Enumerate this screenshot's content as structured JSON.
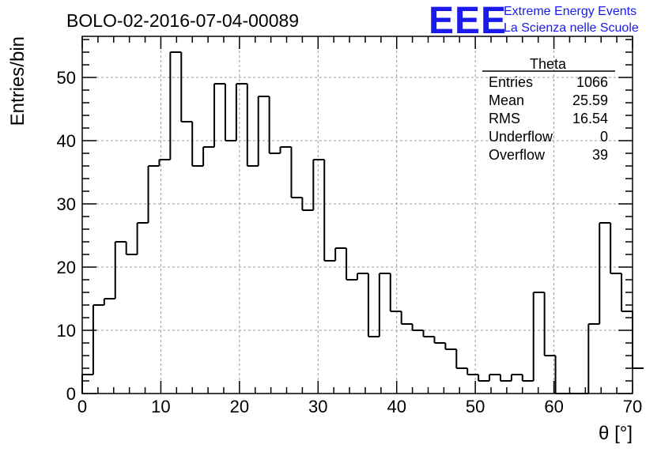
{
  "chart_data": {
    "type": "bar",
    "title": "BOLO-02-2016-07-04-00089",
    "xlabel": "θ [°]",
    "ylabel": "Entries/bin",
    "xlim": [
      0,
      70
    ],
    "ylim": [
      0,
      56.5
    ],
    "x_ticks": [
      "0",
      "10",
      "20",
      "30",
      "40",
      "50",
      "60",
      "70"
    ],
    "y_ticks": [
      "0",
      "10",
      "20",
      "30",
      "40",
      "50"
    ],
    "grid": true,
    "bin_start": 0,
    "bin_width": 1.4,
    "values": [
      3,
      14,
      15,
      24,
      22,
      27,
      36,
      37,
      54,
      43,
      36,
      39,
      49,
      40,
      49,
      36,
      47,
      38,
      39,
      31,
      29,
      37,
      21,
      23,
      18,
      19,
      9,
      19,
      13,
      11,
      10,
      9,
      8,
      7,
      4,
      3,
      2,
      3,
      2,
      3,
      2,
      16,
      6,
      0,
      0,
      0,
      11,
      27,
      19,
      13,
      4
    ],
    "series": [
      {
        "name": "Theta"
      }
    ],
    "stats_box": {
      "title": "Theta",
      "rows": [
        {
          "label": "Entries",
          "value": "1066"
        },
        {
          "label": "Mean",
          "value": "25.59"
        },
        {
          "label": "RMS",
          "value": "16.54"
        },
        {
          "label": "Underflow",
          "value": "0"
        },
        {
          "label": "Overflow",
          "value": "39"
        }
      ],
      "placement": "top-right"
    }
  },
  "logo": {
    "big": "EEE",
    "line1": "Extreme Energy Events",
    "line2": "La Scienza nelle Scuole",
    "color": "#1a1aee"
  }
}
